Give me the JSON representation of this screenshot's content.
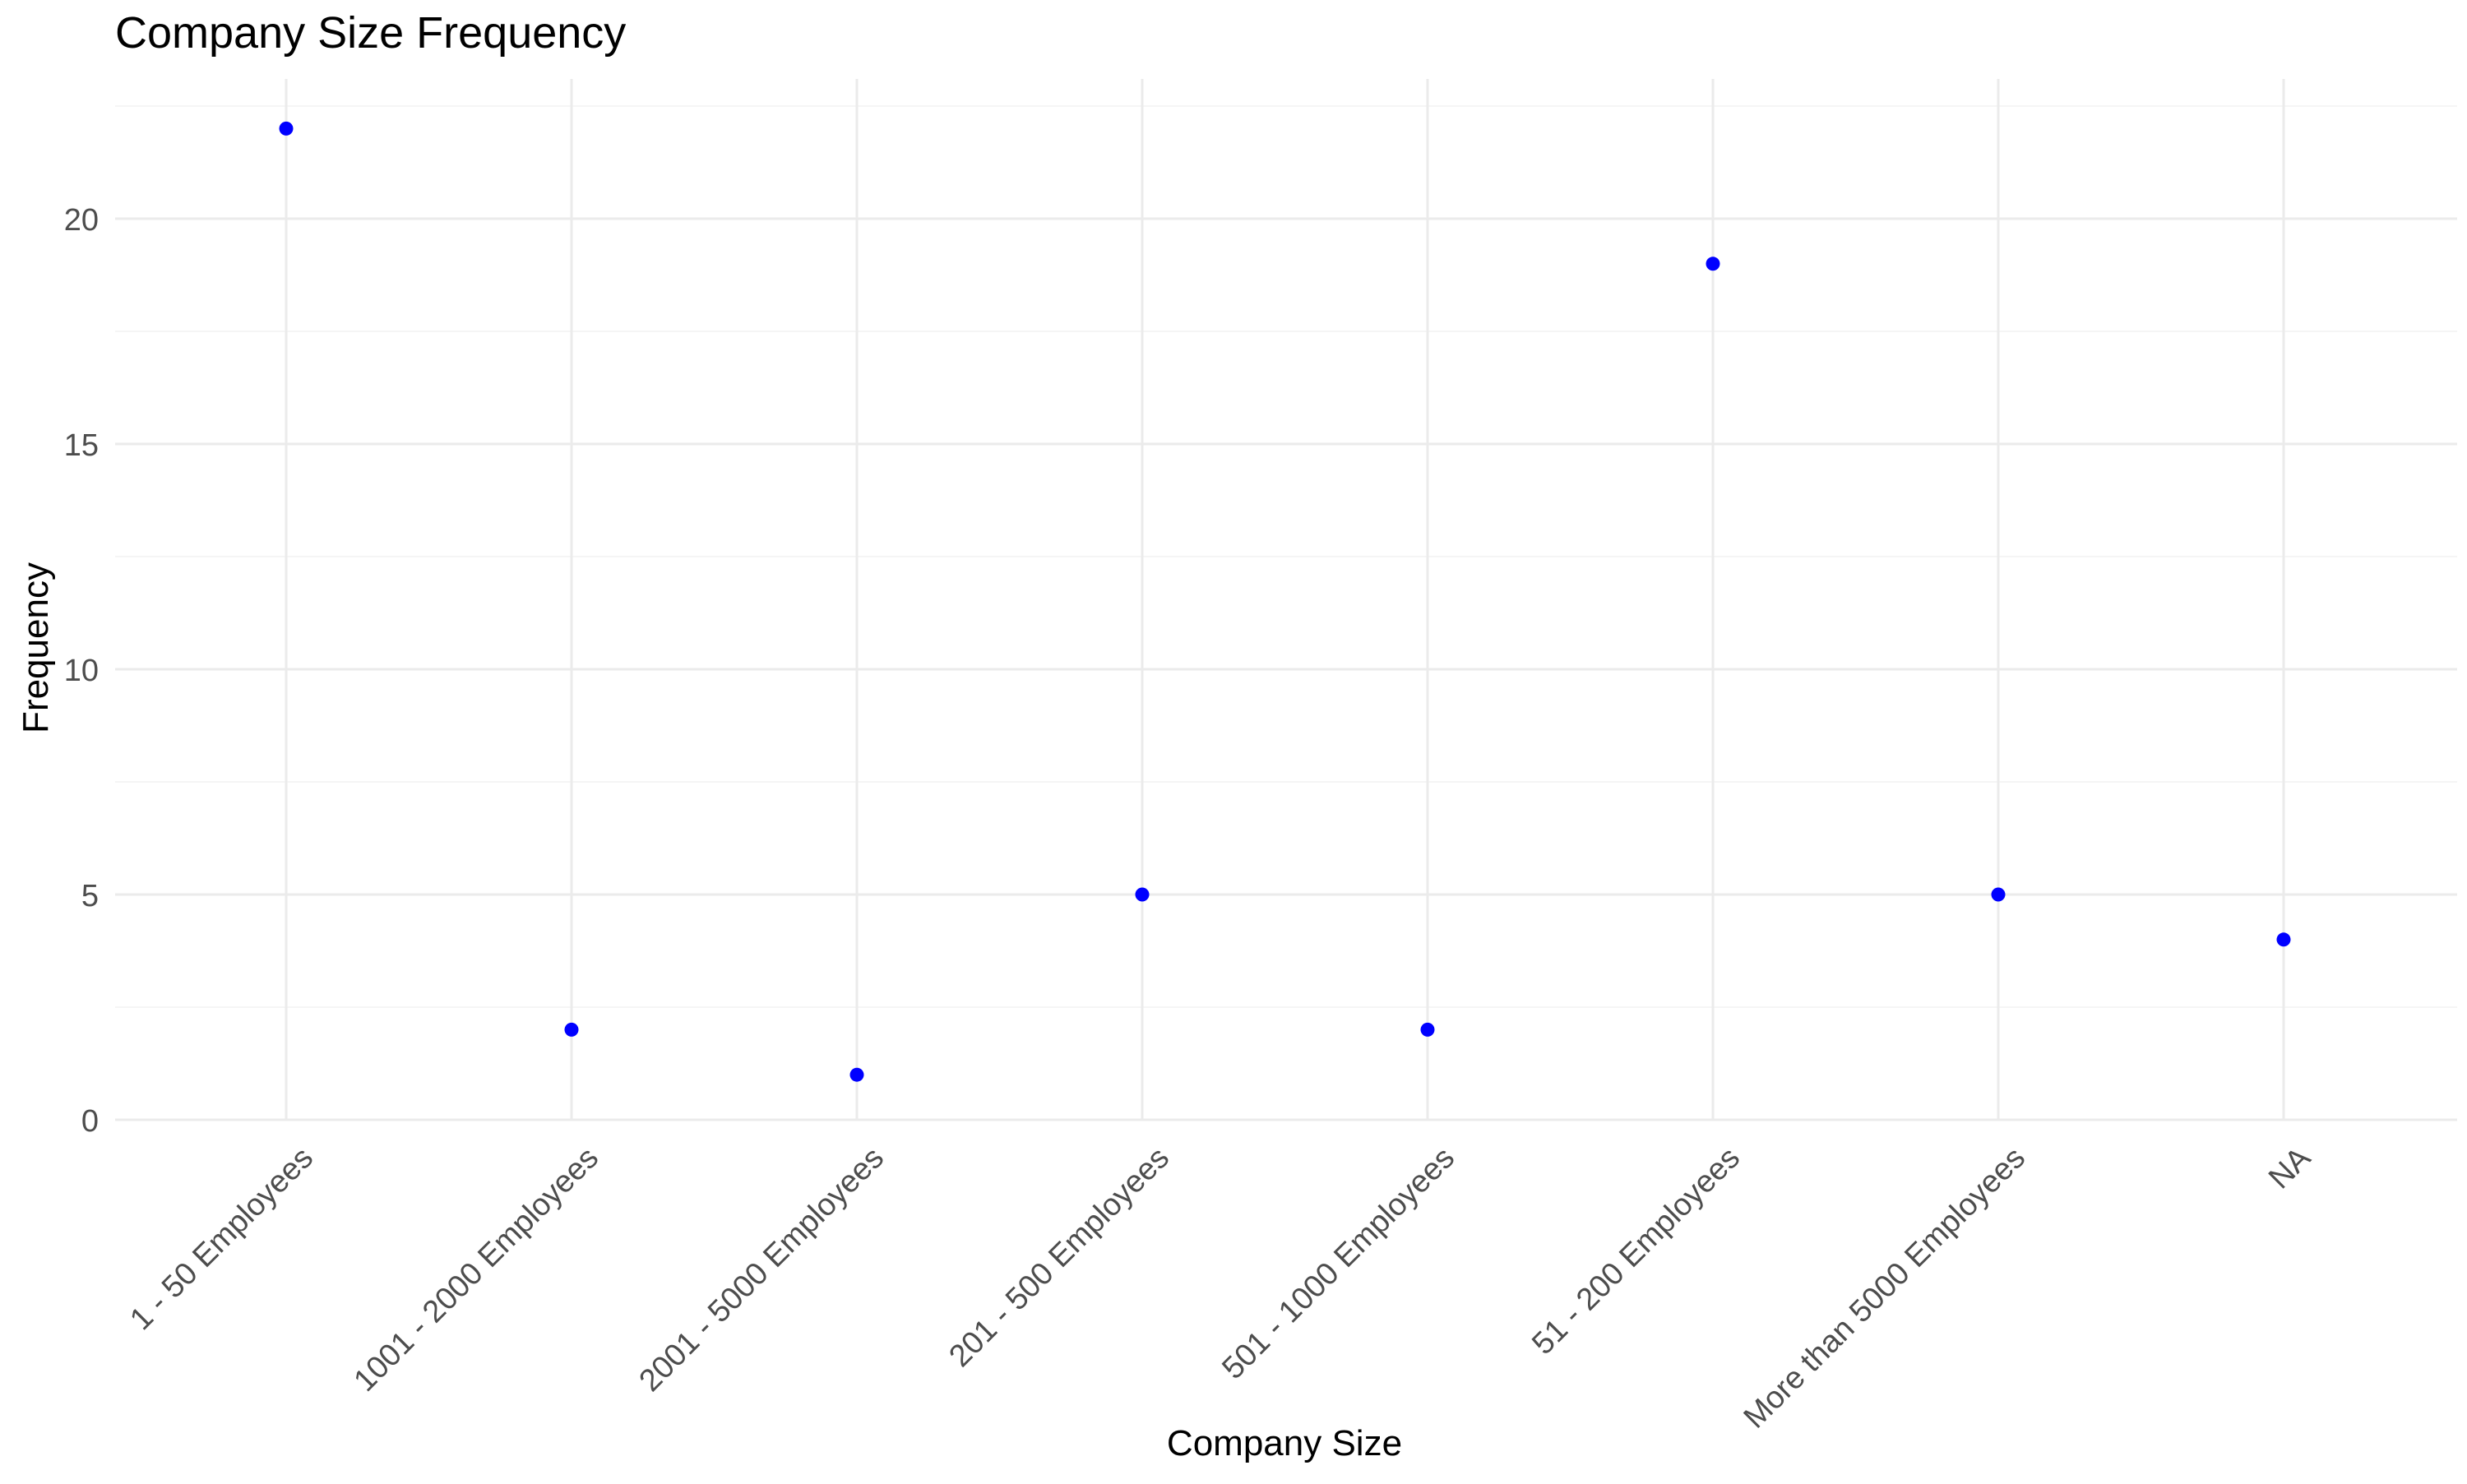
{
  "chart_data": {
    "type": "scatter",
    "title": "Company Size Frequency",
    "xlabel": "Company Size",
    "ylabel": "Frequency",
    "categories": [
      "1 - 50 Employees",
      "1001 - 2000 Employees",
      "2001 - 5000 Employees",
      "201 - 500 Employees",
      "501 - 1000 Employees",
      "51 - 200 Employees",
      "More than 5000 Employees",
      "NA"
    ],
    "values": [
      22,
      2,
      1,
      5,
      2,
      19,
      5,
      4
    ],
    "ylim": [
      0,
      23
    ],
    "yticks": [
      0,
      5,
      10,
      15,
      20
    ],
    "grid": true,
    "legend": "none",
    "colors": {
      "point": "#0000ff",
      "grid_major": "#ebebeb",
      "grid_minor": "#f5f5f5",
      "tick_label": "#4d4d4d",
      "text": "#000000"
    }
  }
}
